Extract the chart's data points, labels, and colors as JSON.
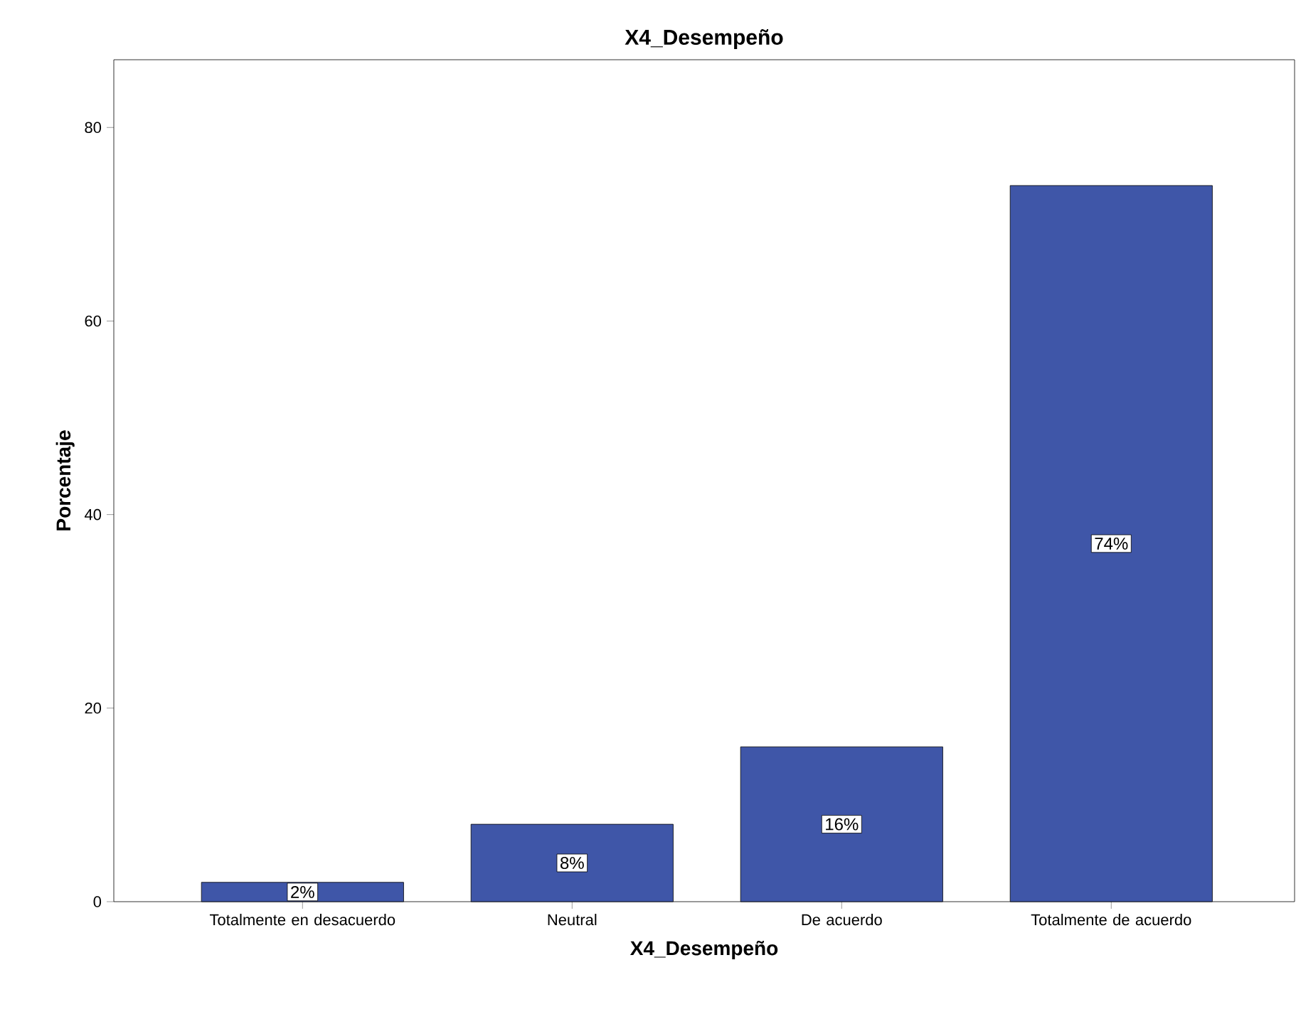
{
  "chart_data": {
    "type": "bar",
    "title": "X4_Desempeño",
    "xlabel": "X4_Desempeño",
    "ylabel": "Porcentaje",
    "categories": [
      "Totalmente en desacuerdo",
      "Neutral",
      "De acuerdo",
      "Totalmente de acuerdo"
    ],
    "values": [
      2,
      8,
      16,
      74
    ],
    "color": "#3f56a8",
    "value_labels": [
      "2%",
      "8%",
      "16%",
      "74%"
    ],
    "ylim": [
      0,
      87
    ],
    "yticks": [
      0,
      20,
      40,
      60,
      80
    ],
    "grid": false
  }
}
